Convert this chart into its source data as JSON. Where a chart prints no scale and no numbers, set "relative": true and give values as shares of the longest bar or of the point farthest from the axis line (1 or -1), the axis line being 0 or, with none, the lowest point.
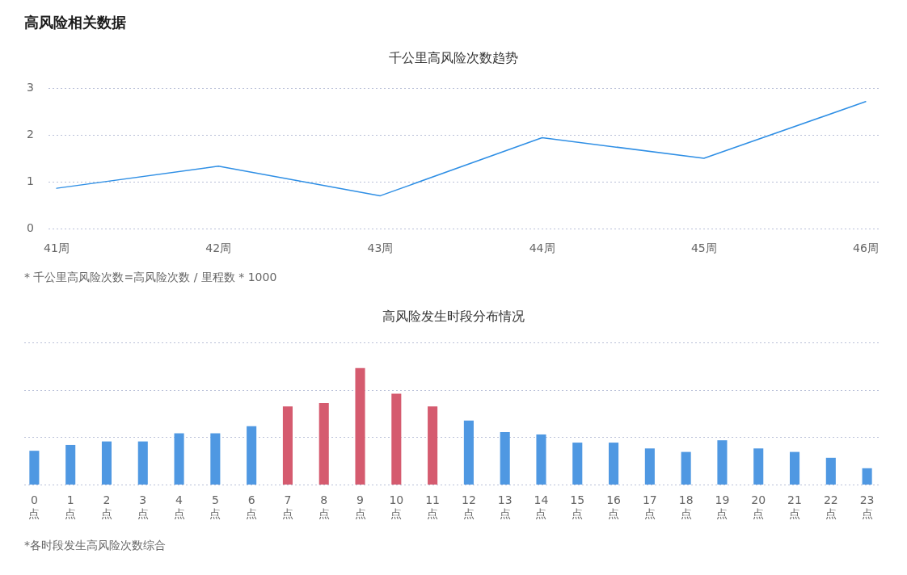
{
  "chart_data": [
    {
      "type": "line",
      "title": "高风险相关数据",
      "subtitle": "千公里高风险次数趋势",
      "categories": [
        "41周",
        "42周",
        "43周",
        "44周",
        "45周",
        "46周"
      ],
      "values": [
        0.86,
        1.33,
        0.7,
        1.94,
        1.5,
        2.71
      ],
      "color": "#2f8fe5",
      "ylim": [
        0,
        3
      ],
      "yticks": [
        0,
        1,
        2,
        3
      ],
      "grid": "y",
      "marker": "none",
      "annotations": [
        "* 千公里高风险次数=高风险次数 / 里程数 * 1000"
      ]
    },
    {
      "type": "bar",
      "title": "高风险发生时段分布情况",
      "categories": [
        "0点",
        "1点",
        "2点",
        "3点",
        "4点",
        "5点",
        "6点",
        "7点",
        "8点",
        "9点",
        "10点",
        "11点",
        "12点",
        "13点",
        "14点",
        "15点",
        "16点",
        "17点",
        "18点",
        "19点",
        "20点",
        "21点",
        "22点",
        "23点"
      ],
      "values": [
        0.29,
        0.34,
        0.37,
        0.37,
        0.44,
        0.44,
        0.5,
        0.67,
        0.7,
        1,
        0.78,
        0.67,
        0.55,
        0.45,
        0.43,
        0.36,
        0.36,
        0.31,
        0.28,
        0.38,
        0.31,
        0.28,
        0.23,
        0.14
      ],
      "colors": [
        "#4f98e2",
        "#4f98e2",
        "#4f98e2",
        "#4f98e2",
        "#4f98e2",
        "#4f98e2",
        "#4f98e2",
        "#d55b6f",
        "#d55b6f",
        "#d55b6f",
        "#d55b6f",
        "#d55b6f",
        "#4f98e2",
        "#4f98e2",
        "#4f98e2",
        "#4f98e2",
        "#4f98e2",
        "#4f98e2",
        "#4f98e2",
        "#4f98e2",
        "#4f98e2",
        "#4f98e2",
        "#4f98e2",
        "#4f98e2"
      ],
      "relative": true,
      "ref_lines": [
        {
          "axis": "y",
          "value": 0.41,
          "color": "#b9c0d8",
          "line_style": "dotted"
        },
        {
          "axis": "y",
          "value": 0.81,
          "color": "#b9c0d8",
          "line_style": "dotted"
        },
        {
          "axis": "y",
          "value": 1.22,
          "color": "#b9c0d8",
          "line_style": "dotted"
        }
      ],
      "annotations": [
        "*各时段发生高风险次数综合"
      ]
    }
  ]
}
